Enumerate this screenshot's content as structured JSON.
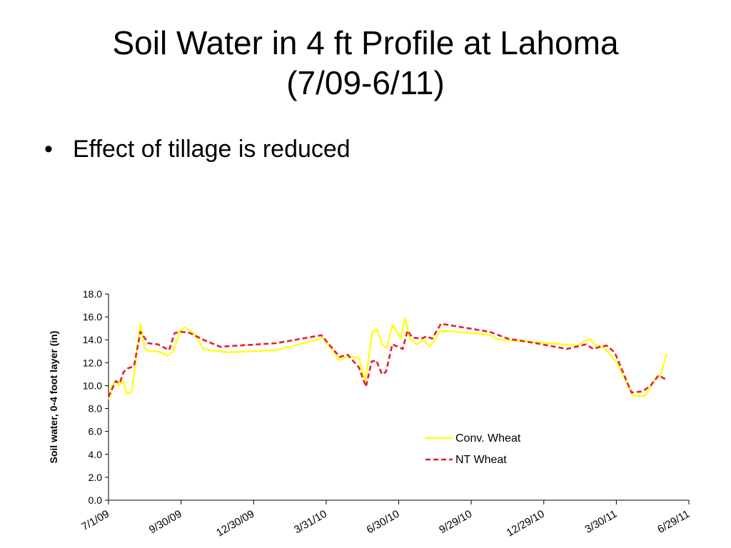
{
  "slide": {
    "title_line1": "Soil Water in 4 ft Profile at Lahoma",
    "title_line2": "(7/09-6/11)",
    "bullets": [
      {
        "marker": "•",
        "text": "Effect of tillage is reduced"
      }
    ]
  },
  "chart_data": {
    "type": "line",
    "ylabel": "Soil water, 0-4 foot layer (in)",
    "xlabel": "",
    "ylim": [
      0,
      18
    ],
    "yticks": [
      "0.0",
      "2.0",
      "4.0",
      "6.0",
      "8.0",
      "10.0",
      "12.0",
      "14.0",
      "16.0",
      "18.0"
    ],
    "xlim": [
      "2009-07-01",
      "2011-06-29"
    ],
    "xticks": [
      {
        "date": "2009-07-01",
        "label": "7/1/09"
      },
      {
        "date": "2009-09-30",
        "label": "9/30/09"
      },
      {
        "date": "2009-12-30",
        "label": "12/30/09"
      },
      {
        "date": "2010-03-31",
        "label": "3/31/10"
      },
      {
        "date": "2010-06-30",
        "label": "6/30/10"
      },
      {
        "date": "2010-09-29",
        "label": "9/29/10"
      },
      {
        "date": "2010-12-29",
        "label": "12/29/10"
      },
      {
        "date": "2011-03-30",
        "label": "3/30/11"
      },
      {
        "date": "2011-06-29",
        "label": "6/29/11"
      }
    ],
    "legend_position": "bottom-right",
    "series": [
      {
        "name": "Conv. Wheat",
        "color": "#ffff00",
        "style": "solid",
        "points": [
          [
            "2009-07-01",
            8.8
          ],
          [
            "2009-07-05",
            9.9
          ],
          [
            "2009-07-10",
            10.4
          ],
          [
            "2009-07-14",
            10.0
          ],
          [
            "2009-07-19",
            10.4
          ],
          [
            "2009-07-24",
            9.3
          ],
          [
            "2009-07-30",
            9.4
          ],
          [
            "2009-08-10",
            15.4
          ],
          [
            "2009-08-15",
            13.3
          ],
          [
            "2009-08-20",
            13.0
          ],
          [
            "2009-08-31",
            13.0
          ],
          [
            "2009-09-08",
            12.8
          ],
          [
            "2009-09-13",
            12.6
          ],
          [
            "2009-09-20",
            13.0
          ],
          [
            "2009-09-29",
            14.8
          ],
          [
            "2009-10-05",
            15.1
          ],
          [
            "2009-10-17",
            14.5
          ],
          [
            "2009-10-28",
            13.2
          ],
          [
            "2009-11-28",
            12.9
          ],
          [
            "2010-01-27",
            13.1
          ],
          [
            "2010-03-20",
            14.0
          ],
          [
            "2010-03-27",
            14.2
          ],
          [
            "2010-04-17",
            12.2
          ],
          [
            "2010-04-27",
            12.6
          ],
          [
            "2010-05-11",
            12.4
          ],
          [
            "2010-05-19",
            10.4
          ],
          [
            "2010-05-28",
            14.7
          ],
          [
            "2010-06-03",
            14.9
          ],
          [
            "2010-06-10",
            13.5
          ],
          [
            "2010-06-15",
            13.3
          ],
          [
            "2010-06-22",
            15.3
          ],
          [
            "2010-07-03",
            14.1
          ],
          [
            "2010-07-08",
            15.9
          ],
          [
            "2010-07-14",
            14.1
          ],
          [
            "2010-07-23",
            13.6
          ],
          [
            "2010-07-31",
            14.0
          ],
          [
            "2010-08-08",
            13.4
          ],
          [
            "2010-08-22",
            14.8
          ],
          [
            "2010-09-28",
            14.6
          ],
          [
            "2010-10-23",
            14.4
          ],
          [
            "2010-11-03",
            14.0
          ],
          [
            "2010-12-19",
            13.8
          ],
          [
            "2011-02-08",
            13.5
          ],
          [
            "2011-02-25",
            14.1
          ],
          [
            "2011-03-02",
            13.6
          ],
          [
            "2011-03-15",
            13.3
          ],
          [
            "2011-03-31",
            12.0
          ],
          [
            "2011-04-20",
            9.1
          ],
          [
            "2011-05-05",
            9.1
          ],
          [
            "2011-05-15",
            10.3
          ],
          [
            "2011-05-25",
            11.0
          ],
          [
            "2011-06-01",
            12.8
          ]
        ]
      },
      {
        "name": "NT Wheat",
        "color": "#e5202c",
        "style": "dashed",
        "points": [
          [
            "2009-07-01",
            9.0
          ],
          [
            "2009-07-10",
            10.4
          ],
          [
            "2009-07-15",
            10.2
          ],
          [
            "2009-07-20",
            11.2
          ],
          [
            "2009-07-25",
            11.5
          ],
          [
            "2009-08-02",
            11.7
          ],
          [
            "2009-08-10",
            14.7
          ],
          [
            "2009-08-20",
            13.7
          ],
          [
            "2009-09-01",
            13.6
          ],
          [
            "2009-09-15",
            13.1
          ],
          [
            "2009-09-22",
            14.6
          ],
          [
            "2009-10-01",
            14.7
          ],
          [
            "2009-10-11",
            14.6
          ],
          [
            "2009-10-28",
            14.0
          ],
          [
            "2009-11-18",
            13.4
          ],
          [
            "2010-01-27",
            13.7
          ],
          [
            "2010-03-25",
            14.4
          ],
          [
            "2010-04-17",
            12.5
          ],
          [
            "2010-04-27",
            12.7
          ],
          [
            "2010-05-11",
            11.6
          ],
          [
            "2010-05-20",
            9.9
          ],
          [
            "2010-05-27",
            12.1
          ],
          [
            "2010-06-02",
            12.2
          ],
          [
            "2010-06-09",
            11.0
          ],
          [
            "2010-06-14",
            11.2
          ],
          [
            "2010-06-22",
            13.6
          ],
          [
            "2010-06-29",
            13.4
          ],
          [
            "2010-07-05",
            13.2
          ],
          [
            "2010-07-11",
            14.8
          ],
          [
            "2010-07-17",
            14.2
          ],
          [
            "2010-07-28",
            14.1
          ],
          [
            "2010-08-04",
            14.3
          ],
          [
            "2010-08-11",
            14.1
          ],
          [
            "2010-08-22",
            15.4
          ],
          [
            "2010-10-22",
            14.7
          ],
          [
            "2010-11-14",
            14.1
          ],
          [
            "2010-12-19",
            13.7
          ],
          [
            "2011-01-27",
            13.2
          ],
          [
            "2011-02-20",
            13.6
          ],
          [
            "2011-03-01",
            13.2
          ],
          [
            "2011-03-10",
            13.4
          ],
          [
            "2011-03-18",
            13.5
          ],
          [
            "2011-03-28",
            12.9
          ],
          [
            "2011-04-18",
            9.4
          ],
          [
            "2011-05-02",
            9.5
          ],
          [
            "2011-05-12",
            10.0
          ],
          [
            "2011-05-22",
            10.9
          ],
          [
            "2011-06-01",
            10.5
          ]
        ]
      }
    ]
  }
}
